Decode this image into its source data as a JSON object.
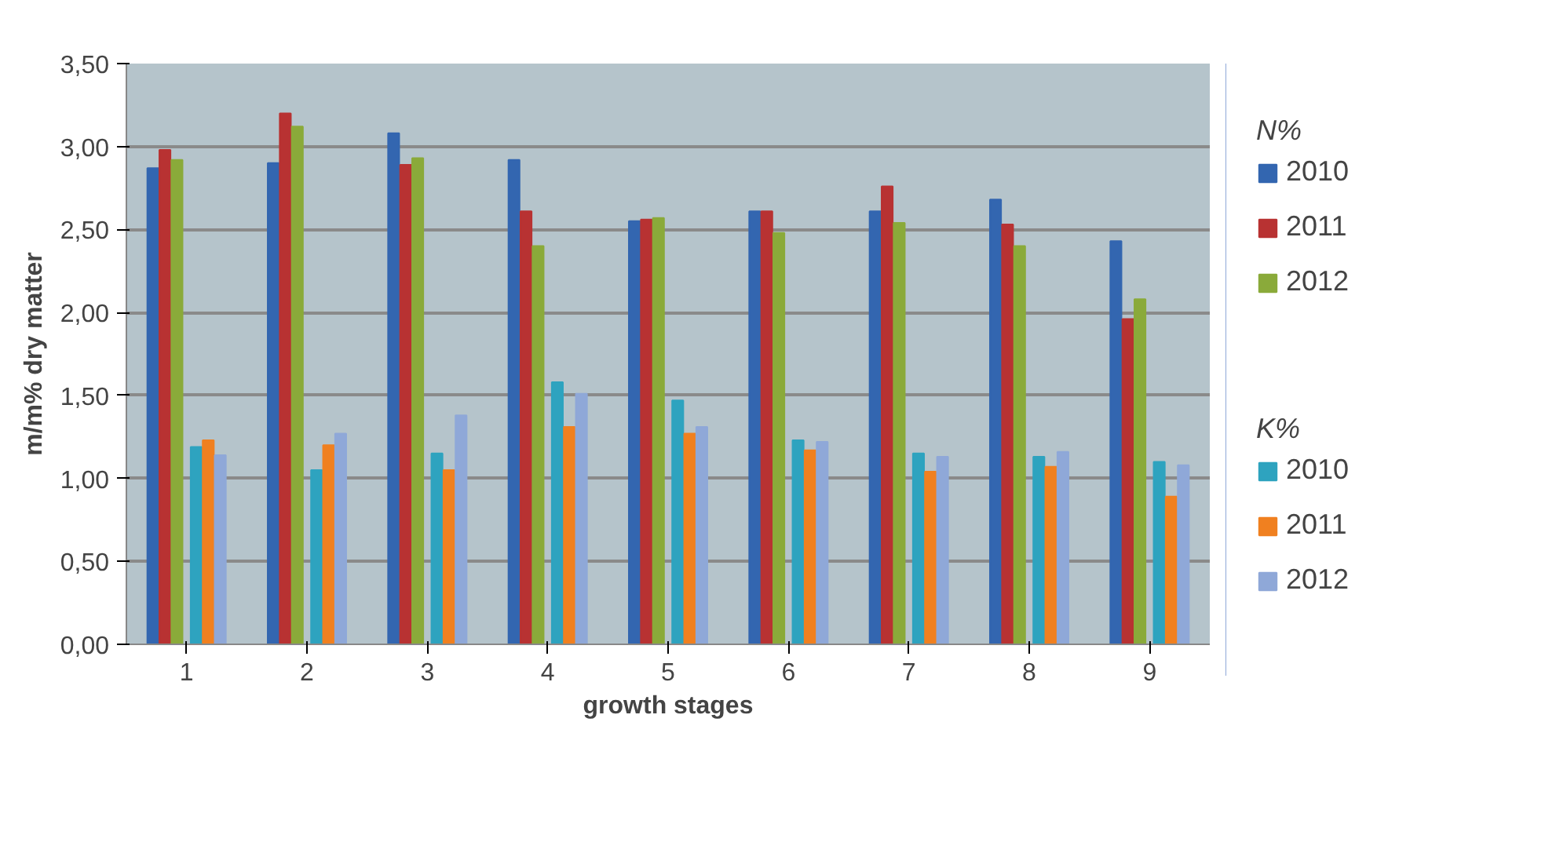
{
  "chart_data": {
    "type": "bar",
    "xlabel": "growth stages",
    "ylabel": "m/m% dry matter",
    "categories": [
      "1",
      "2",
      "3",
      "4",
      "5",
      "6",
      "7",
      "8",
      "9"
    ],
    "annotations": [
      "N%",
      "K%"
    ],
    "series": [
      {
        "name": "2010",
        "color": "#3366b0",
        "values": [
          2.87,
          2.9,
          3.08,
          2.92,
          2.55,
          2.61,
          2.61,
          2.68,
          2.43
        ]
      },
      {
        "name": "2011",
        "color": "#b83232",
        "values": [
          2.98,
          3.2,
          2.89,
          2.61,
          2.56,
          2.61,
          2.76,
          2.53,
          1.96
        ]
      },
      {
        "name": "2012",
        "color": "#8aaa3a",
        "values": [
          2.92,
          3.12,
          2.93,
          2.4,
          2.57,
          2.48,
          2.54,
          2.4,
          2.08
        ]
      },
      {
        "name": "2010",
        "color": "#2ea3bf",
        "values": [
          1.19,
          1.05,
          1.15,
          1.58,
          1.47,
          1.23,
          1.15,
          1.13,
          1.1
        ]
      },
      {
        "name": "2011",
        "color": "#f08020",
        "values": [
          1.23,
          1.2,
          1.05,
          1.31,
          1.27,
          1.17,
          1.04,
          1.07,
          0.89
        ]
      },
      {
        "name": "2012",
        "color": "#8fa8d8",
        "values": [
          1.14,
          1.27,
          1.38,
          1.51,
          1.31,
          1.22,
          1.13,
          1.16,
          1.08
        ]
      }
    ],
    "ylim": [
      0,
      3.5
    ],
    "yticks": [
      {
        "value": 0,
        "label": "0,00"
      },
      {
        "value": 0.5,
        "label": "0,50"
      },
      {
        "value": 1,
        "label": "1,00"
      },
      {
        "value": 1.5,
        "label": "1,50"
      },
      {
        "value": 2,
        "label": "2,00"
      },
      {
        "value": 2.5,
        "label": "2,50"
      },
      {
        "value": 3,
        "label": "3,00"
      },
      {
        "value": 3.5,
        "label": "3,50"
      }
    ],
    "grid": "y",
    "legend": "right"
  }
}
